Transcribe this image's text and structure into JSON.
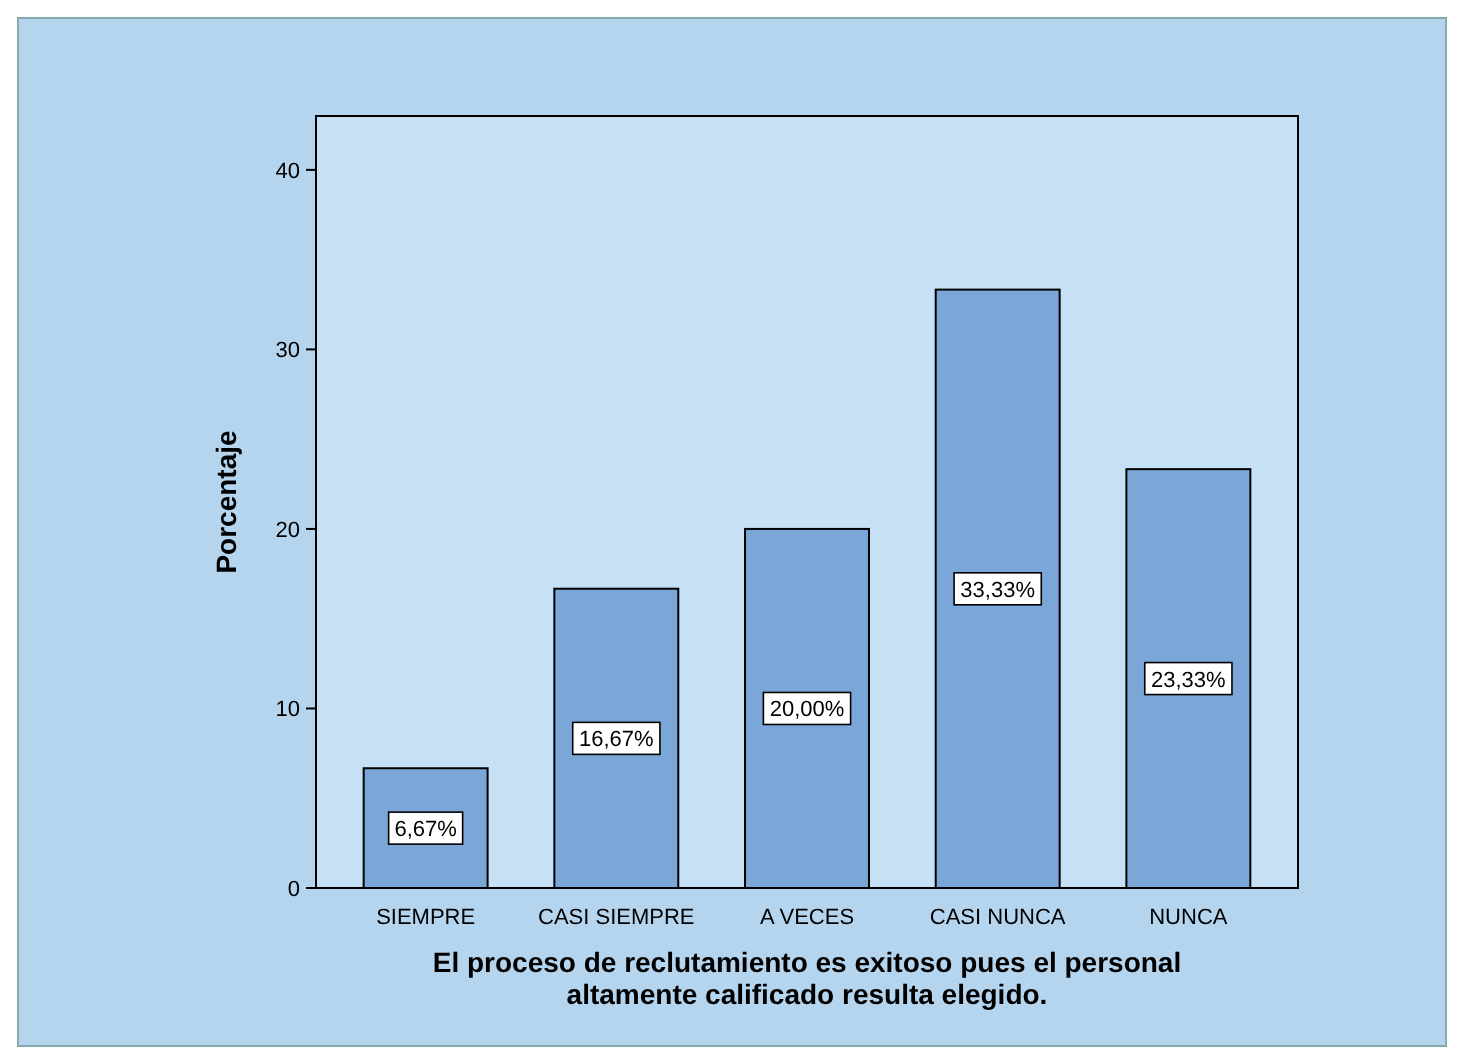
{
  "chart_data": {
    "type": "bar",
    "xlabel": "El proceso de reclutamiento es exitoso pues el personal altamente calificado resulta elegido.",
    "ylabel": "Porcentaje",
    "categories": [
      "SIEMPRE",
      "CASI SIEMPRE",
      "A VECES",
      "CASI NUNCA",
      "NUNCA"
    ],
    "values": [
      6.67,
      16.67,
      20.0,
      33.33,
      23.33
    ],
    "value_labels": [
      "6,67%",
      "16,67%",
      "20,00%",
      "33,33%",
      "23,33%"
    ],
    "color": "#7aa6d8",
    "ylim": [
      0,
      43
    ],
    "yticks": [
      0,
      10,
      20,
      30,
      40
    ],
    "grid": false
  }
}
